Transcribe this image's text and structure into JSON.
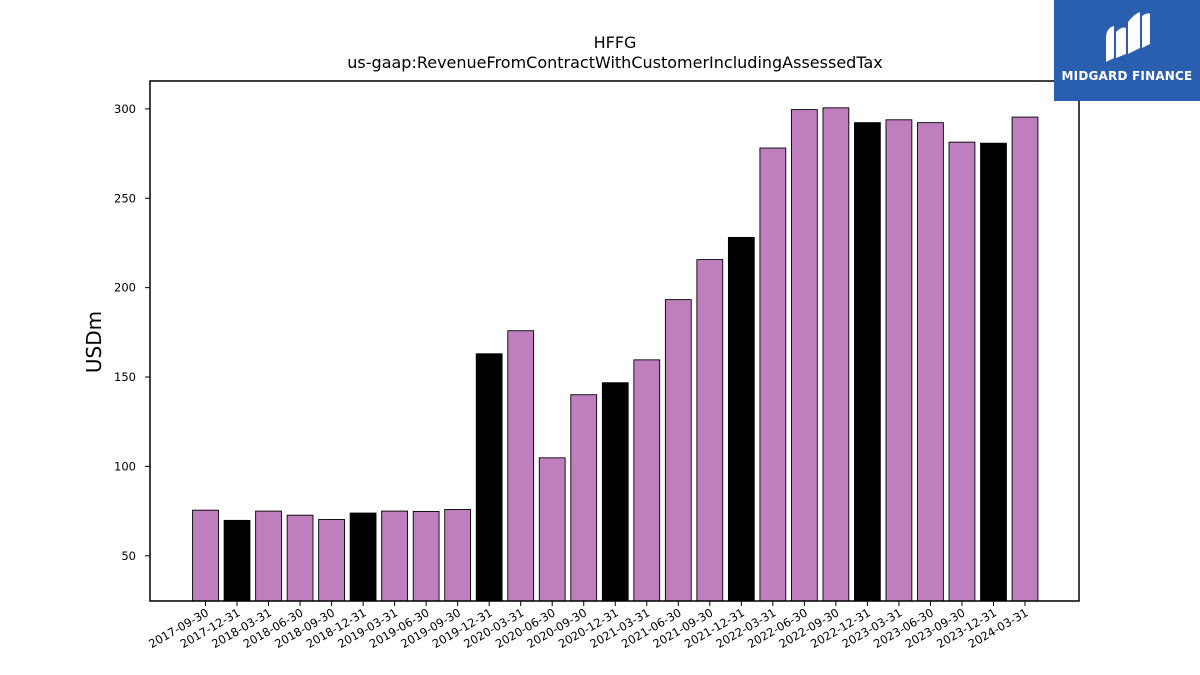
{
  "chart_data": {
    "type": "bar",
    "title": "HFFG",
    "subtitle": "us-gaap:RevenueFromContractWithCustomerIncludingAssessedTax",
    "xlabel": "",
    "ylabel": "USDm",
    "ylim": [
      24.7,
      315.6
    ],
    "yticks": [
      50,
      100,
      150,
      200,
      250,
      300
    ],
    "grid": false,
    "categories": [
      "2017-09-30",
      "2017-12-31",
      "2018-03-31",
      "2018-06-30",
      "2018-09-30",
      "2018-12-31",
      "2019-03-31",
      "2019-06-30",
      "2019-09-30",
      "2019-12-31",
      "2020-03-31",
      "2020-06-30",
      "2020-09-30",
      "2020-12-31",
      "2021-03-31",
      "2021-06-30",
      "2021-09-30",
      "2021-12-31",
      "2022-03-31",
      "2022-06-30",
      "2022-09-30",
      "2022-12-31",
      "2023-03-31",
      "2023-06-30",
      "2023-09-30",
      "2023-12-31",
      "2024-03-31"
    ],
    "values": [
      75.5,
      69.8,
      75.0,
      72.7,
      70.3,
      73.9,
      75.0,
      74.8,
      75.9,
      163.0,
      175.9,
      104.8,
      140.1,
      146.8,
      159.6,
      193.3,
      215.7,
      228.1,
      278.1,
      299.6,
      300.6,
      292.3,
      293.9,
      292.3,
      281.4,
      280.8,
      295.4
    ],
    "bar_colors": [
      "#bf7fbf",
      "#000000",
      "#bf7fbf",
      "#bf7fbf",
      "#bf7fbf",
      "#000000",
      "#bf7fbf",
      "#bf7fbf",
      "#bf7fbf",
      "#000000",
      "#bf7fbf",
      "#bf7fbf",
      "#bf7fbf",
      "#000000",
      "#bf7fbf",
      "#bf7fbf",
      "#bf7fbf",
      "#000000",
      "#bf7fbf",
      "#bf7fbf",
      "#bf7fbf",
      "#000000",
      "#bf7fbf",
      "#bf7fbf",
      "#bf7fbf",
      "#000000",
      "#bf7fbf"
    ]
  },
  "logo": {
    "text": "MIDGARD FINANCE",
    "color": "#2a5fb0"
  }
}
